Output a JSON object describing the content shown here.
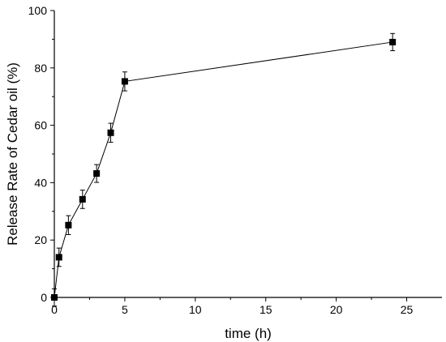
{
  "chart_data": {
    "type": "line",
    "title": "",
    "xlabel": "time (h)",
    "ylabel": "Release Rate of Cedar oil (%)",
    "xlim": [
      0,
      27.5
    ],
    "ylim": [
      0,
      100
    ],
    "x_ticks": [
      0,
      5,
      10,
      15,
      20,
      25
    ],
    "y_ticks": [
      0,
      20,
      40,
      60,
      80,
      100
    ],
    "grid": false,
    "legend": "none",
    "marker": "square",
    "color": "#000000",
    "series": [
      {
        "x": [
          0,
          0.33,
          1,
          2,
          3,
          4,
          5,
          24
        ],
        "y": [
          0,
          14.0,
          25.2,
          34.2,
          43.2,
          57.4,
          75.3,
          89.0
        ],
        "error": [
          3.0,
          3.2,
          3.3,
          3.2,
          3.1,
          3.3,
          3.3,
          3.0
        ]
      }
    ]
  }
}
